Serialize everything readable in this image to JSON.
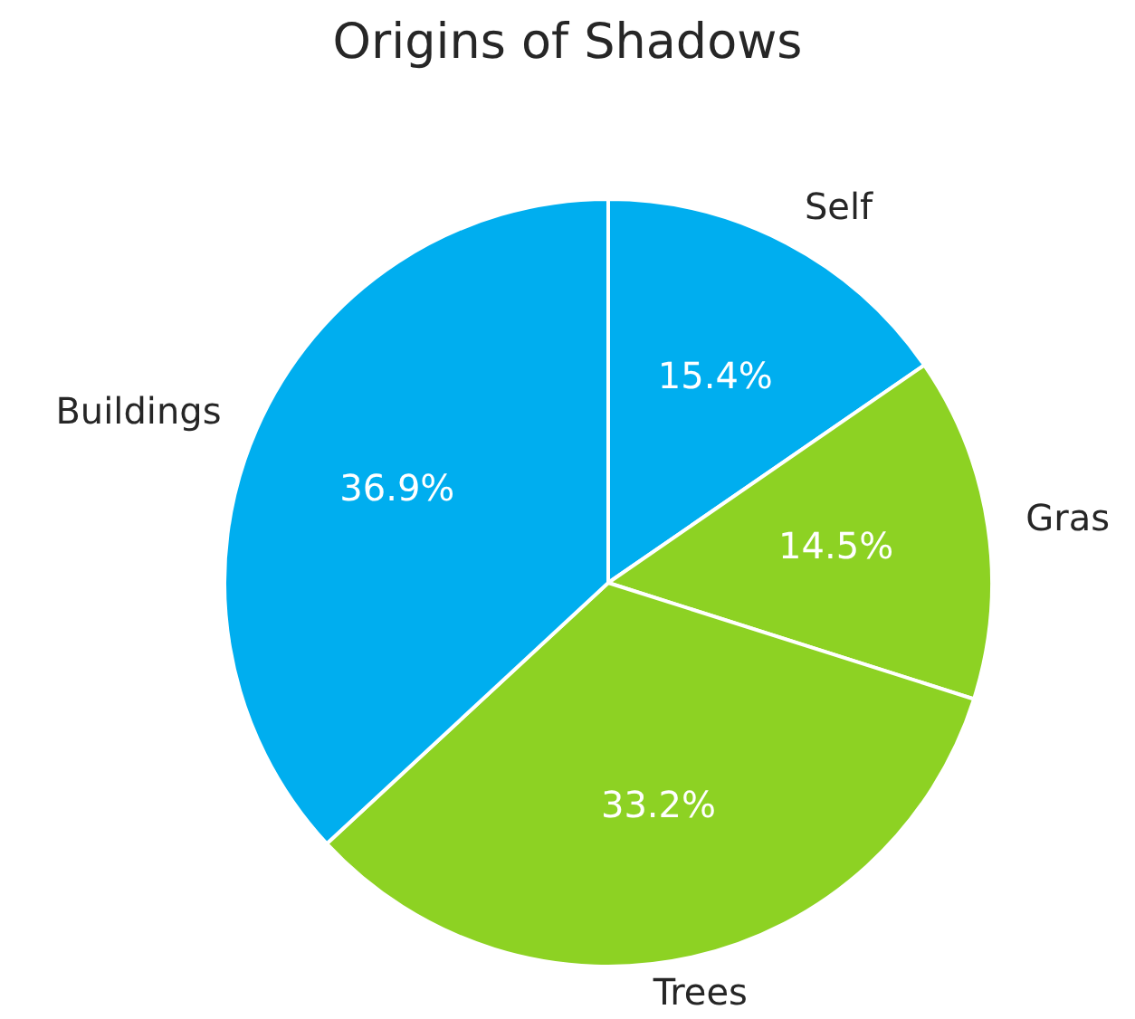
{
  "chart_data": {
    "type": "pie",
    "title": "Origins of Shadows",
    "categories": [
      "Self",
      "Gras",
      "Trees",
      "Buildings"
    ],
    "values": [
      15.4,
      14.5,
      33.2,
      36.9
    ],
    "value_labels": [
      "15.4%",
      "14.5%",
      "33.2%",
      "36.9%"
    ],
    "colors": [
      "#00aeef",
      "#8dd223",
      "#8dd223",
      "#00aeef"
    ]
  }
}
